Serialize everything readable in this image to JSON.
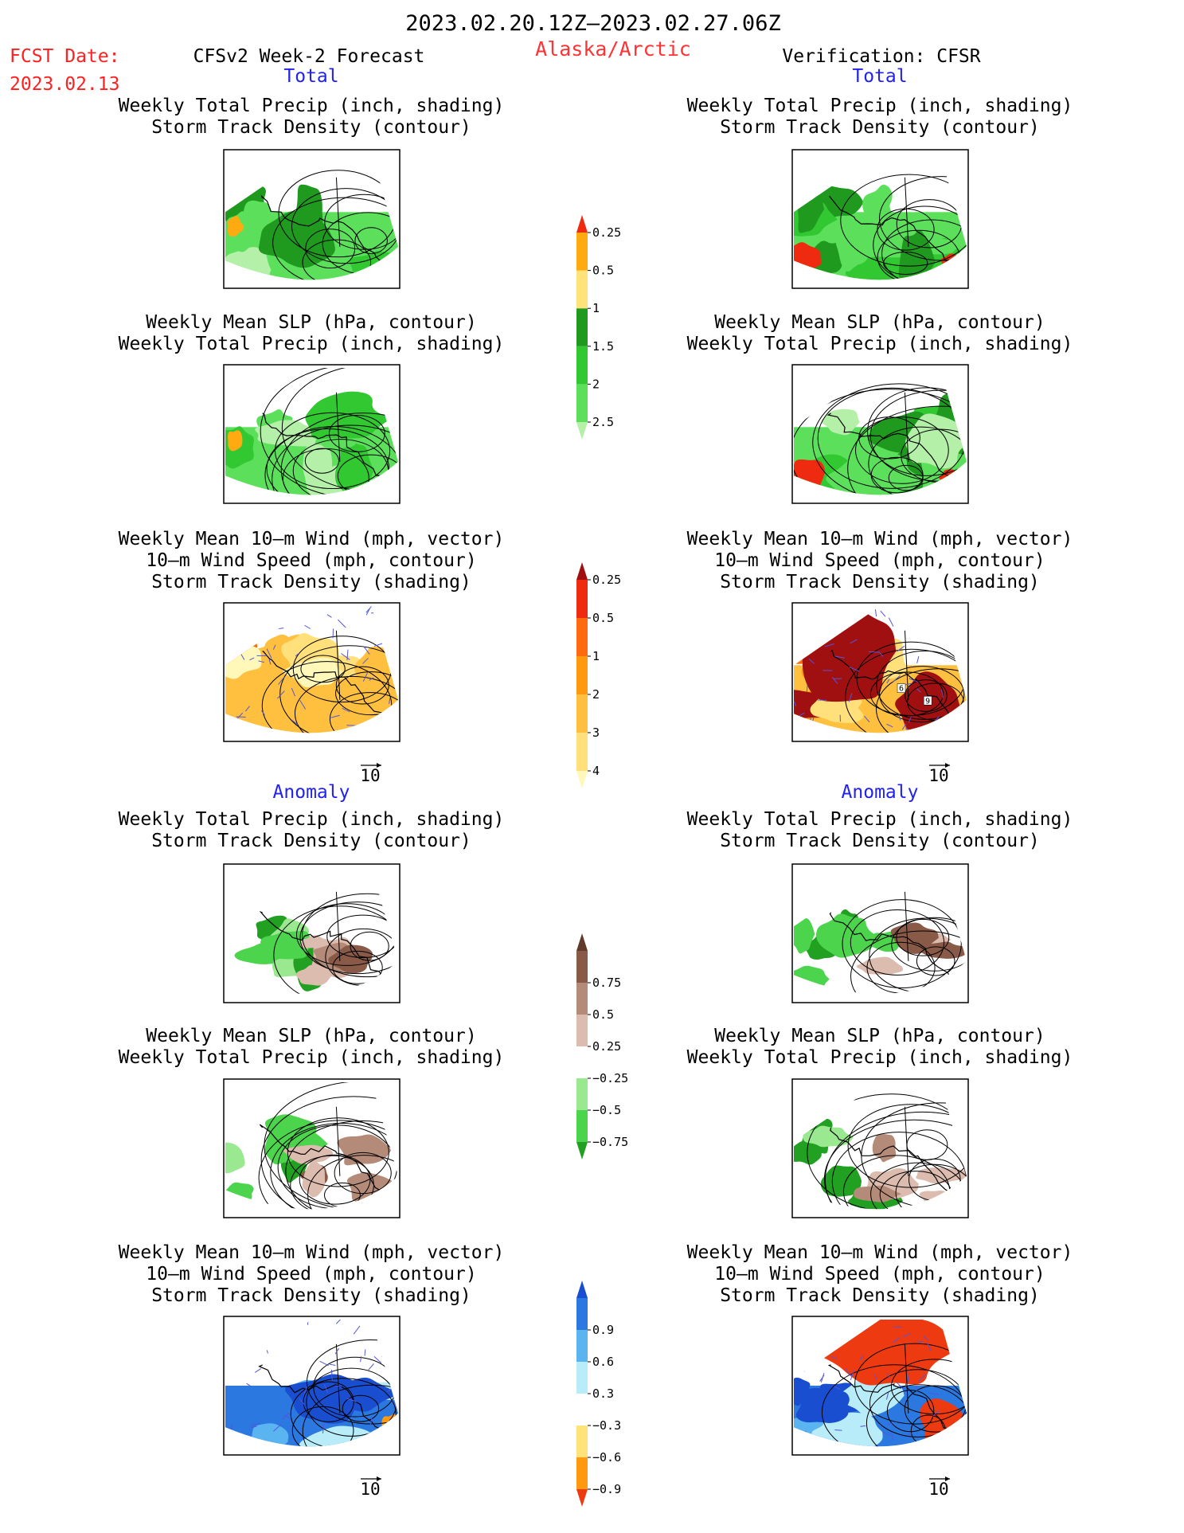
{
  "header": {
    "date_range": "2023.02.20.12Z‒2023.02.27.06Z",
    "fcst_label": "FCST Date:",
    "fcst_date": "2023.02.13",
    "model_label": "CFSv2 Week-2 Forecast",
    "region": "Alaska/Arctic",
    "verification": "Verification: CFSR"
  },
  "colors": {
    "title": "#000000",
    "fcst": "#ff2020",
    "region": "#ff3333",
    "section": "#2222ee",
    "frame": "#000000",
    "vector": "#5555dd"
  },
  "sections": {
    "total": "Total",
    "anomaly": "Anomaly"
  },
  "panel_titles": {
    "precip_storm": [
      "Weekly Total Precip (inch, shading)",
      "Storm Track Density (contour)"
    ],
    "slp_precip": [
      "Weekly Mean SLP (hPa, contour)",
      "Weekly Total Precip (inch, shading)"
    ],
    "wind_storm": [
      "Weekly Mean 10‒m Wind (mph, vector)",
      "10‒m Wind Speed (mph, contour)",
      "Storm Track Density (shading)"
    ]
  },
  "vector_reference": "10",
  "chart_data": [
    {
      "type": "heatmap",
      "panel": "forecast-total-precip",
      "title": [
        "Weekly Total Precip (inch, shading)",
        "Storm Track Density (contour)"
      ],
      "column": "CFSv2 Week-2 Forecast",
      "section": "Total"
    },
    {
      "type": "heatmap",
      "panel": "verification-total-precip",
      "title": [
        "Weekly Total Precip (inch, shading)",
        "Storm Track Density (contour)"
      ],
      "column": "Verification: CFSR",
      "section": "Total"
    },
    {
      "type": "heatmap",
      "panel": "forecast-total-slp",
      "title": [
        "Weekly Mean SLP (hPa, contour)",
        "Weekly Total Precip (inch, shading)"
      ],
      "column": "CFSv2 Week-2 Forecast",
      "section": "Total"
    },
    {
      "type": "heatmap",
      "panel": "verification-total-slp",
      "title": [
        "Weekly Mean SLP (hPa, contour)",
        "Weekly Total Precip (inch, shading)"
      ],
      "column": "Verification: CFSR",
      "section": "Total"
    },
    {
      "type": "heatmap",
      "panel": "forecast-total-wind",
      "title": [
        "Weekly Mean 10‒m Wind (mph, vector)",
        "10‒m Wind Speed (mph, contour)",
        "Storm Track Density (shading)"
      ],
      "column": "CFSv2 Week-2 Forecast",
      "section": "Total",
      "vector_reference": "10"
    },
    {
      "type": "heatmap",
      "panel": "verification-total-wind",
      "title": [
        "Weekly Mean 10‒m Wind (mph, vector)",
        "10‒m Wind Speed (mph, contour)",
        "Storm Track Density (shading)"
      ],
      "column": "Verification: CFSR",
      "section": "Total",
      "contour_labels": [
        "6",
        "9"
      ],
      "vector_reference": "10"
    },
    {
      "type": "heatmap",
      "panel": "forecast-anomaly-precip",
      "title": [
        "Weekly Total Precip (inch, shading)",
        "Storm Track Density (contour)"
      ],
      "column": "CFSv2 Week-2 Forecast",
      "section": "Anomaly"
    },
    {
      "type": "heatmap",
      "panel": "verification-anomaly-precip",
      "title": [
        "Weekly Total Precip (inch, shading)",
        "Storm Track Density (contour)"
      ],
      "column": "Verification: CFSR",
      "section": "Anomaly"
    },
    {
      "type": "heatmap",
      "panel": "forecast-anomaly-slp",
      "title": [
        "Weekly Mean SLP (hPa, contour)",
        "Weekly Total Precip (inch, shading)"
      ],
      "column": "CFSv2 Week-2 Forecast",
      "section": "Anomaly"
    },
    {
      "type": "heatmap",
      "panel": "verification-anomaly-slp",
      "title": [
        "Weekly Mean SLP (hPa, contour)",
        "Weekly Total Precip (inch, shading)"
      ],
      "column": "Verification: CFSR",
      "section": "Anomaly"
    },
    {
      "type": "heatmap",
      "panel": "forecast-anomaly-wind",
      "title": [
        "Weekly Mean 10‒m Wind (mph, vector)",
        "10‒m Wind Speed (mph, contour)",
        "Storm Track Density (shading)"
      ],
      "column": "CFSv2 Week-2 Forecast",
      "section": "Anomaly",
      "vector_reference": "10"
    },
    {
      "type": "heatmap",
      "panel": "verification-anomaly-wind",
      "title": [
        "Weekly Mean 10‒m Wind (mph, vector)",
        "10‒m Wind Speed (mph, contour)",
        "Storm Track Density (shading)"
      ],
      "column": "Verification: CFSR",
      "section": "Anomaly",
      "vector_reference": "10"
    }
  ],
  "colorbars": [
    {
      "name": "precip-total",
      "labels": [
        "0.25",
        "0.5",
        "1",
        "1.5",
        "2",
        "2.5"
      ],
      "colors": [
        "#b4f0a8",
        "#5ce05c",
        "#32c832",
        "#1f9a1f",
        "#ffe27a",
        "#ffaa10",
        "#ee2a10"
      ]
    },
    {
      "name": "storm-track-total",
      "labels": [
        "0.25",
        "0.5",
        "1",
        "2",
        "3",
        "4"
      ],
      "colors": [
        "#fff8b8",
        "#ffe07a",
        "#ffc040",
        "#ff9a10",
        "#ff6a10",
        "#ee2a10",
        "#a01010"
      ]
    },
    {
      "name": "precip-anomaly",
      "labels": [
        "0.75",
        "0.5",
        "0.25",
        "−0.25",
        "−0.5",
        "−0.75"
      ],
      "colors": [
        "#22a022",
        "#4cd44c",
        "#9ae890",
        "#ffffff",
        "#dcbcae",
        "#b48a78",
        "#8a5a48",
        "#603a2a"
      ]
    },
    {
      "name": "storm-track-anomaly",
      "labels": [
        "0.9",
        "0.6",
        "0.3",
        "−0.3",
        "−0.6",
        "−0.9"
      ],
      "colors": [
        "#ee3a10",
        "#ff9a10",
        "#ffe27a",
        "#ffffff",
        "#b8ecf8",
        "#5ab4f0",
        "#2a78e0",
        "#1a4ed0"
      ]
    }
  ]
}
